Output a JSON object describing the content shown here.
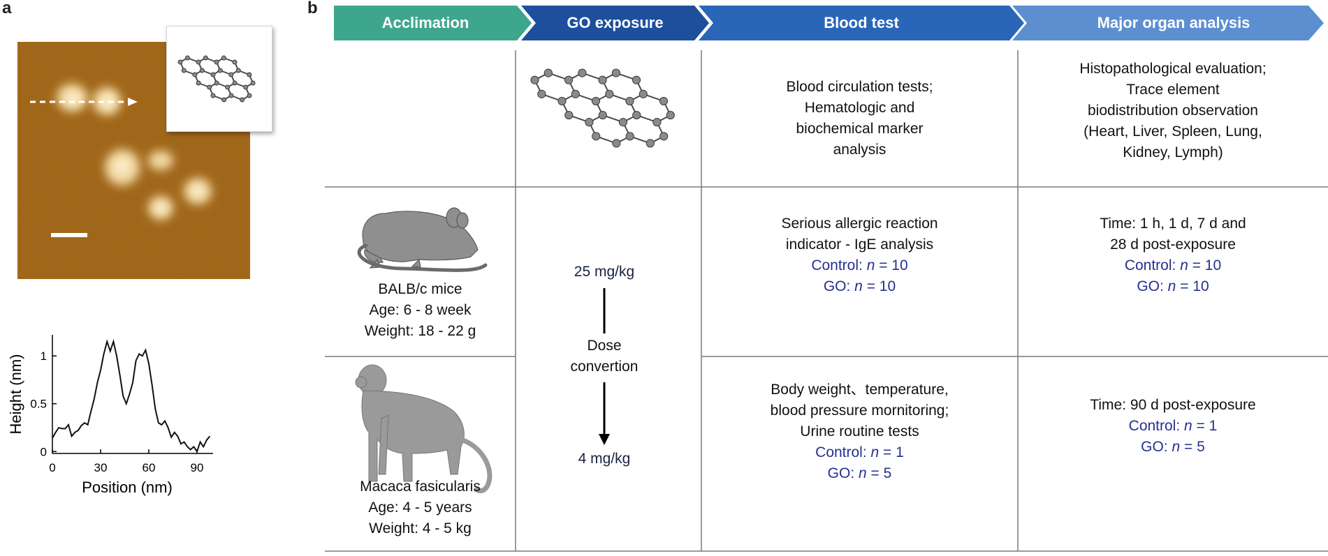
{
  "panel_labels": {
    "a": "a",
    "b": "b"
  },
  "profile_chart": {
    "type": "line",
    "xlabel": "Position (nm)",
    "ylabel": "Height (nm)",
    "xlim": [
      0,
      100
    ],
    "ylim": [
      -0.02,
      1.22
    ],
    "x_ticks": [
      "0",
      "30",
      "60",
      "90"
    ],
    "y_ticks": [
      "0",
      "0.5",
      "1"
    ],
    "x": [
      0,
      2,
      4,
      6,
      8,
      10,
      12,
      14,
      16,
      18,
      20,
      22,
      24,
      26,
      28,
      30,
      32,
      34,
      36,
      38,
      40,
      42,
      44,
      46,
      48,
      50,
      52,
      54,
      56,
      58,
      60,
      62,
      64,
      66,
      68,
      70,
      72,
      74,
      76,
      78,
      80,
      82,
      84,
      86,
      88,
      90,
      92,
      94,
      96,
      98
    ],
    "y": [
      0.14,
      0.2,
      0.25,
      0.24,
      0.24,
      0.28,
      0.16,
      0.2,
      0.22,
      0.27,
      0.3,
      0.28,
      0.42,
      0.55,
      0.72,
      0.85,
      1.02,
      1.15,
      1.05,
      1.15,
      1.0,
      0.8,
      0.58,
      0.5,
      0.6,
      0.72,
      0.95,
      1.02,
      1.0,
      1.06,
      0.92,
      0.7,
      0.45,
      0.3,
      0.28,
      0.32,
      0.25,
      0.15,
      0.2,
      0.16,
      0.08,
      0.1,
      0.05,
      0.02,
      0.05,
      0.0,
      0.1,
      0.05,
      0.12,
      0.16
    ]
  },
  "stages": [
    "Acclimation",
    "GO exposure",
    "Blood test",
    "Major organ analysis"
  ],
  "stage_colors": [
    "#3fa68e",
    "#1d4f9c",
    "#2a66b8",
    "#5d8fd0"
  ],
  "row_go": {
    "blood_test": [
      "Blood circulation tests;",
      "Hematologic and",
      "biochemical marker",
      "analysis"
    ],
    "organ_analysis": [
      "Histopathological evaluation;",
      "Trace element",
      "biodistribution observation",
      "(Heart, Liver, Spleen, Lung,",
      "Kidney, Lymph)"
    ]
  },
  "row_mice": {
    "subject": [
      "BALB/c mice",
      "Age: 6 - 8 week",
      "Weight: 18 - 22 g"
    ],
    "dose": "25 mg/kg",
    "blood_test": [
      "Serious allergic reaction",
      "indicator - IgE analysis"
    ],
    "blood_counts": [
      {
        "label": "Control: ",
        "n": "n",
        "value": " = 10"
      },
      {
        "label": "GO: ",
        "n": "n",
        "value": " = 10"
      }
    ],
    "organ_analysis": [
      "Time: 1 h, 1 d, 7 d and",
      "28 d post-exposure"
    ],
    "organ_counts": [
      {
        "label": "Control: ",
        "n": "n",
        "value": " = 10"
      },
      {
        "label": "GO: ",
        "n": "n",
        "value": " = 10"
      }
    ]
  },
  "dose_conversion": [
    "Dose",
    "convertion"
  ],
  "row_macaca": {
    "subject": [
      "Macaca fasicularis",
      "Age: 4 - 5 years",
      "Weight: 4 - 5 kg"
    ],
    "dose": "4 mg/kg",
    "blood_test": [
      "Body weight、temperature,",
      "blood pressure mornitoring;",
      "Urine routine tests"
    ],
    "blood_counts": [
      {
        "label": "Control: ",
        "n": "n",
        "value": " = 1"
      },
      {
        "label": "GO: ",
        "n": "n",
        "value": " = 5"
      }
    ],
    "organ_analysis": [
      "Time: 90 d post-exposure"
    ],
    "organ_counts": [
      {
        "label": "Control: ",
        "n": "n",
        "value": " = 1"
      },
      {
        "label": "GO: ",
        "n": "n",
        "value": " = 5"
      }
    ]
  }
}
